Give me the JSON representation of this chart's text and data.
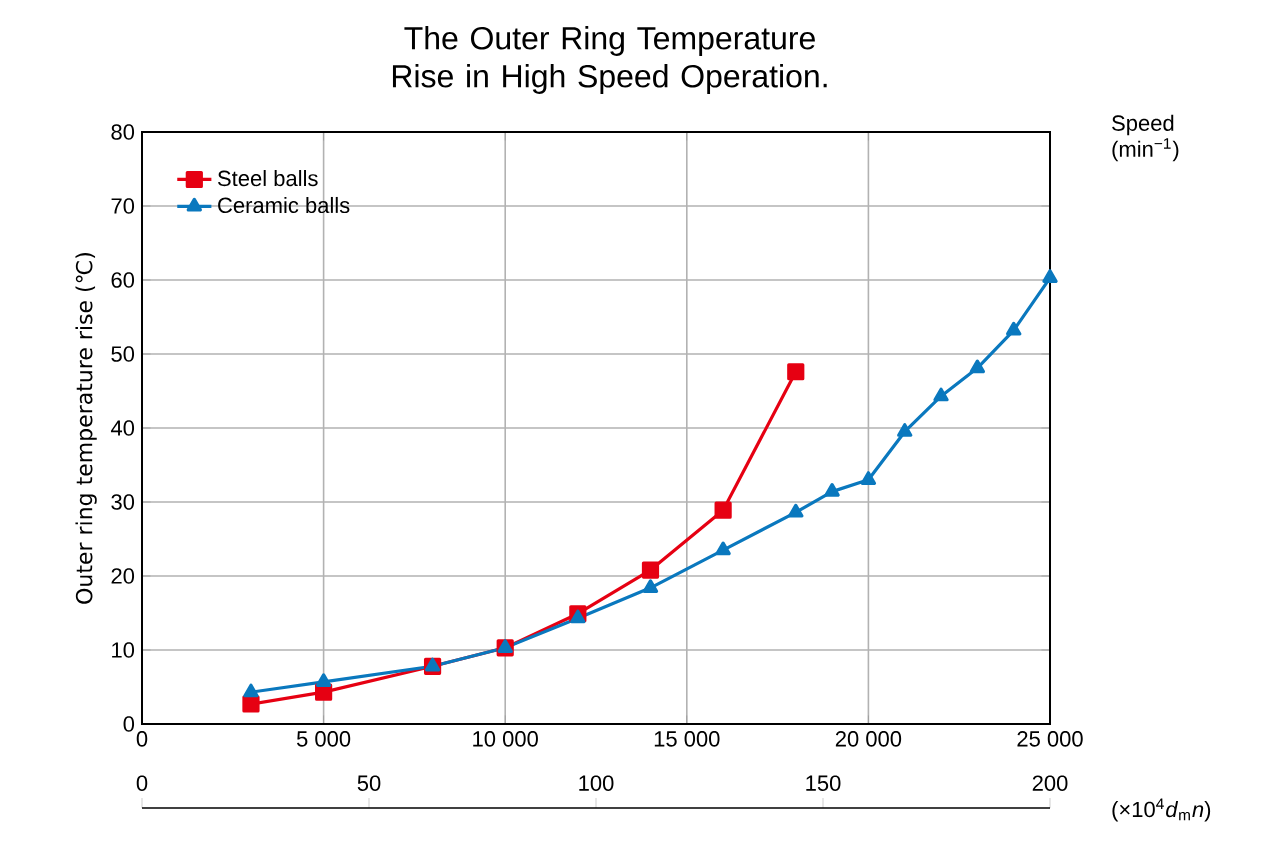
{
  "chart_data": {
    "type": "line",
    "title": "The Outer Ring Temperature Rise in High Speed Operation.",
    "xlabel": "Speed (min$^{−1}$)",
    "ylabel": "Outer ring temperature rise (℃)",
    "x2label": "(×10$^{4}$*d*$_{m}$*n*)",
    "series": [
      {
        "name": "Steel balls",
        "color": "#e60012",
        "marker": "square",
        "x": [
          3000,
          5000,
          8000,
          10000,
          12000,
          14000,
          16000,
          18000
        ],
        "values": [
          2.7,
          4.3,
          7.8,
          10.3,
          14.9,
          20.8,
          28.9,
          47.6
        ]
      },
      {
        "name": "Ceramic balls",
        "color": "#0a78be",
        "marker": "triangle",
        "x": [
          3000,
          5000,
          8000,
          10000,
          12000,
          14000,
          16000,
          18000,
          19000,
          20000,
          21000,
          22000,
          23000,
          24000,
          25000
        ],
        "values": [
          4.3,
          5.7,
          7.8,
          10.3,
          14.3,
          18.4,
          23.5,
          28.6,
          31.4,
          33.0,
          39.5,
          44.3,
          48.1,
          53.2,
          60.3
        ]
      }
    ],
    "xlim": [
      0,
      25000
    ],
    "xticks": [
      0,
      {
        "value": 5000,
        "label": "5 000"
      },
      {
        "value": 10000,
        "label": "10 000"
      },
      {
        "value": 15000,
        "label": "15 000"
      },
      {
        "value": 20000,
        "label": "20 000"
      },
      {
        "value": 25000,
        "label": "25 000"
      }
    ],
    "x2lim": [
      0,
      200
    ],
    "x2ticks": [
      0,
      50,
      100,
      150,
      200
    ],
    "ylim": [
      0,
      80
    ],
    "yticks": [
      0,
      10,
      20,
      30,
      40,
      50,
      60,
      70,
      80
    ],
    "grid": true,
    "legend": "top left",
    "line_style": "solid"
  }
}
